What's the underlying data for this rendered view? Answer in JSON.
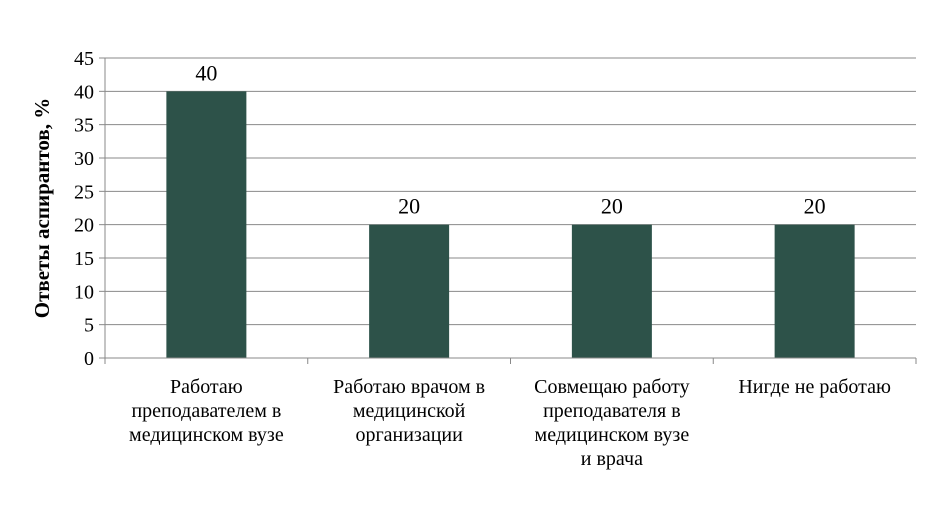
{
  "chart_data": {
    "type": "bar",
    "title": "",
    "xlabel": "",
    "ylabel": "Ответы аспирантов, %",
    "ylim": [
      0,
      45
    ],
    "ytick_step": 5,
    "grid": true,
    "legend": "none",
    "bar_color": "#2d5249",
    "grid_color": "#898989",
    "categories": [
      [
        "Работаю",
        "преподавателем в",
        "медицинском вузе"
      ],
      [
        "Работаю врачом в",
        "медицинской",
        "организации"
      ],
      [
        "Совмещаю работу",
        "преподавателя в",
        "медицинском вузе",
        "и врача"
      ],
      [
        "Нигде не работаю"
      ]
    ],
    "values": [
      40,
      20,
      20,
      20
    ],
    "data_labels": [
      "40",
      "20",
      "20",
      "20"
    ]
  }
}
